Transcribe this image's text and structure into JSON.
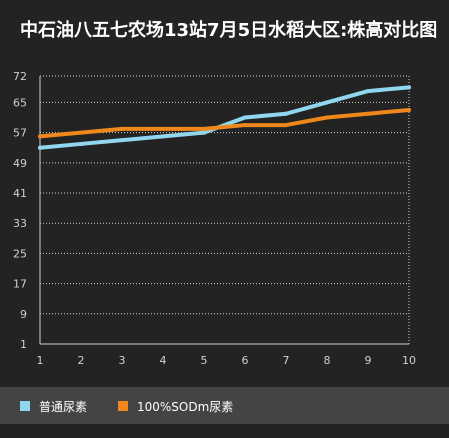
{
  "chart_data": {
    "type": "line",
    "title": "中石油八五七农场13站7月5日水稻大区:株高对比图",
    "x": [
      1,
      2,
      3,
      4,
      5,
      6,
      7,
      8,
      9,
      10
    ],
    "series": [
      {
        "name": "普通尿素",
        "color": "#8fd6ee",
        "values": [
          53,
          54,
          55,
          56,
          57,
          61,
          62,
          65,
          68,
          69
        ]
      },
      {
        "name": "100%SODm尿素",
        "color": "#f0871c",
        "values": [
          56,
          57,
          58,
          58,
          58,
          59,
          59,
          61,
          62,
          63
        ]
      }
    ],
    "y_ticks": [
      1,
      9,
      17,
      25,
      33,
      41,
      49,
      57,
      65,
      72
    ],
    "ylim": [
      1,
      72
    ],
    "xlim": [
      1,
      10
    ],
    "grid": true,
    "legend_position": "bottom"
  }
}
